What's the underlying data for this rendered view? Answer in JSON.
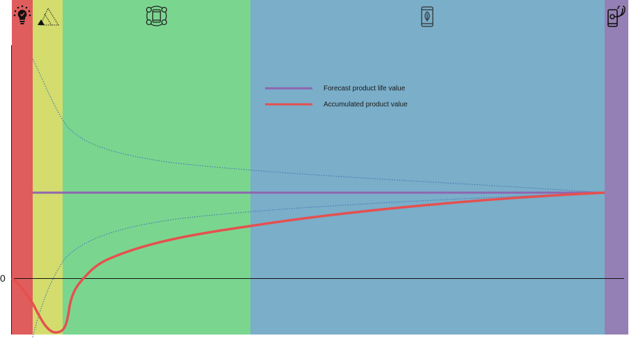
{
  "phases": [
    {
      "name": "ideation",
      "icon": "lightbulb-check-icon",
      "color": "#e05d5d"
    },
    {
      "name": "development",
      "icon": "triangles-icon",
      "color": "#d3dc6c"
    },
    {
      "name": "launch",
      "icon": "connected-phone-icon",
      "color": "#7ad68f"
    },
    {
      "name": "use",
      "icon": "phone-leaf-icon",
      "color": "#7aaec9"
    },
    {
      "name": "support",
      "icon": "phone-stethoscope-icon",
      "color": "#9480b4"
    }
  ],
  "axis": {
    "zero_label": "0"
  },
  "legend": [
    {
      "label": "Forecast product life value",
      "color": "#8e66b0"
    },
    {
      "label": "Accumulated product value",
      "color": "#e5504f"
    }
  ],
  "series_colors": {
    "forecast": "#8e66b0",
    "accumulated": "#e5504f",
    "bounds": "#4a78b0"
  }
}
